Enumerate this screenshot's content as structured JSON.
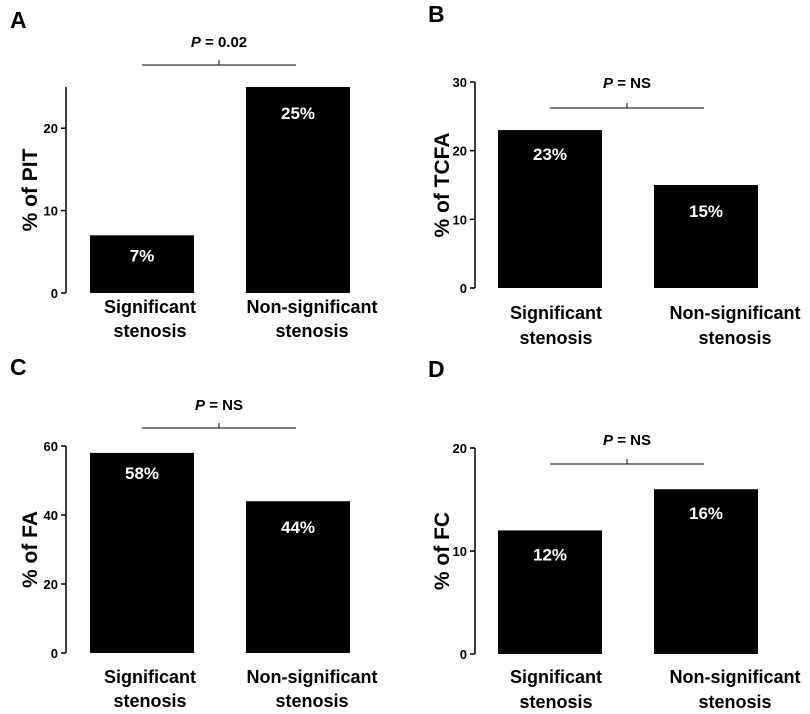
{
  "chart_data": [
    {
      "type": "bar",
      "panel": "A",
      "categories": [
        [
          "Significant",
          "stenosis"
        ],
        [
          "Non-significant",
          "stenosis"
        ]
      ],
      "values": [
        7,
        25
      ],
      "value_labels": [
        "7%",
        "25%"
      ],
      "ylabel": "% of PIT",
      "ylim": [
        0,
        25
      ],
      "yticks": [
        0,
        10,
        20
      ],
      "p_italic": "P",
      "p_rest": " = 0.02",
      "bar_color": "#000000"
    },
    {
      "type": "bar",
      "panel": "B",
      "categories": [
        [
          "Significant",
          "stenosis"
        ],
        [
          "Non-significant",
          "stenosis"
        ]
      ],
      "values": [
        23,
        15
      ],
      "value_labels": [
        "23%",
        "15%"
      ],
      "ylabel": "% of TCFA",
      "ylim": [
        0,
        30
      ],
      "yticks": [
        0,
        10,
        20,
        30
      ],
      "p_italic": "P",
      "p_rest": " = NS",
      "bar_color": "#000000"
    },
    {
      "type": "bar",
      "panel": "C",
      "categories": [
        [
          "Significant",
          "stenosis"
        ],
        [
          "Non-significant",
          "stenosis"
        ]
      ],
      "values": [
        58,
        44
      ],
      "value_labels": [
        "58%",
        "44%"
      ],
      "ylabel": "% of FA",
      "ylim": [
        0,
        60
      ],
      "yticks": [
        0,
        20,
        40,
        60
      ],
      "p_italic": "P",
      "p_rest": " = NS",
      "bar_color": "#000000"
    },
    {
      "type": "bar",
      "panel": "D",
      "categories": [
        [
          "Significant",
          "stenosis"
        ],
        [
          "Non-significant",
          "stenosis"
        ]
      ],
      "values": [
        12,
        16
      ],
      "value_labels": [
        "12%",
        "16%"
      ],
      "ylabel": "% of FC",
      "ylim": [
        0,
        20
      ],
      "yticks": [
        0,
        10,
        20
      ],
      "p_italic": "P",
      "p_rest": " = NS",
      "bar_color": "#000000"
    }
  ]
}
